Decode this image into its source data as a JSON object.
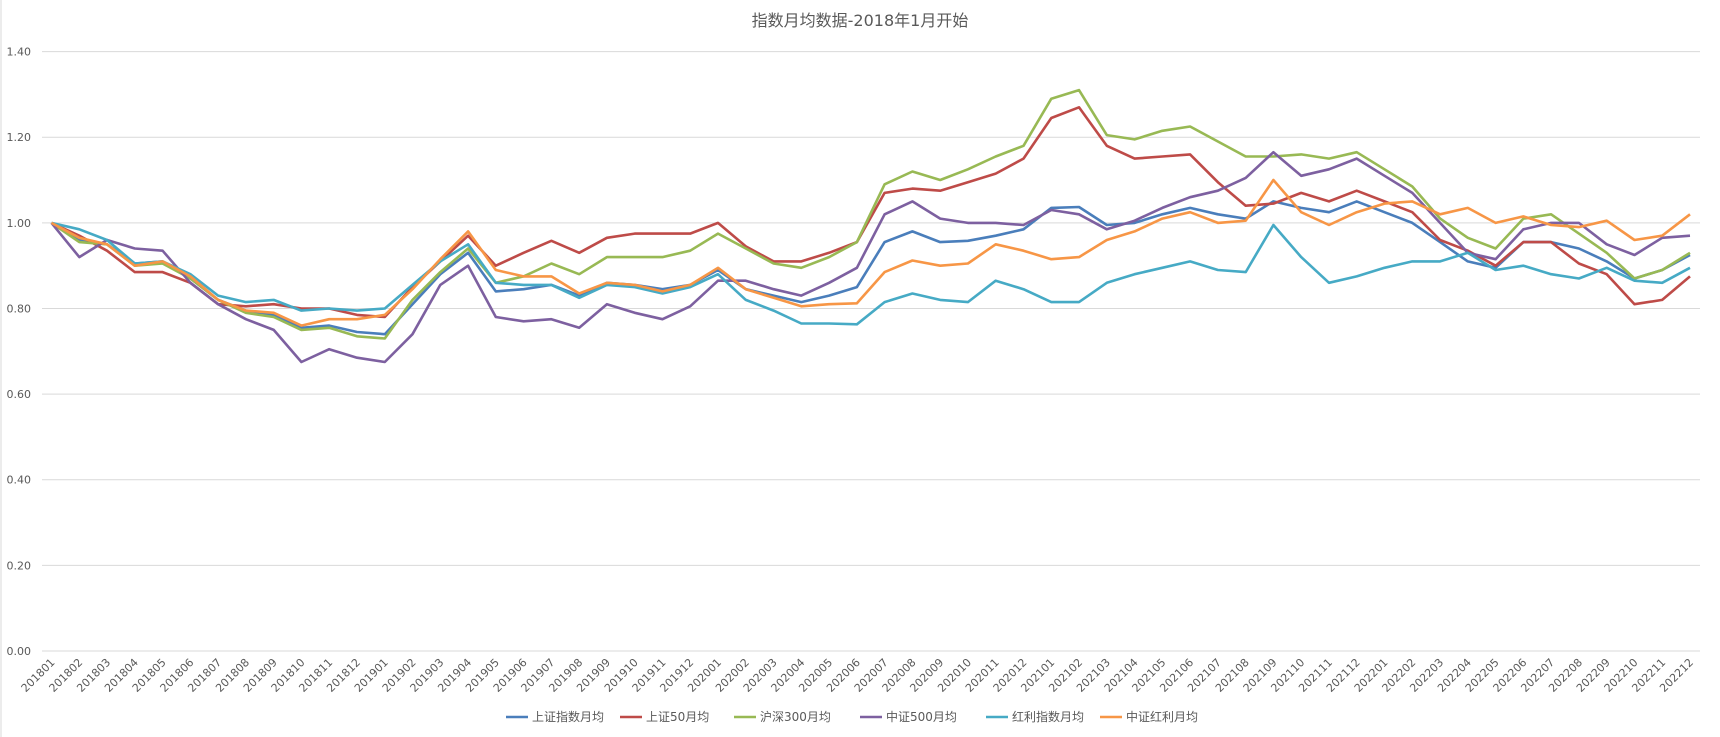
{
  "chart_data": {
    "type": "line",
    "title": "指数月均数据-2018年1月开始",
    "xlabel": "",
    "ylabel": "",
    "ylim": [
      0,
      1.4
    ],
    "yticks": [
      "0.00",
      "0.20",
      "0.40",
      "0.60",
      "0.80",
      "1.00",
      "1.20",
      "1.40"
    ],
    "grid": true,
    "legend_position": "bottom",
    "categories": [
      "201801",
      "201802",
      "201803",
      "201804",
      "201805",
      "201806",
      "201807",
      "201808",
      "201809",
      "201810",
      "201811",
      "201812",
      "201901",
      "201902",
      "201903",
      "201904",
      "201905",
      "201906",
      "201907",
      "201908",
      "201909",
      "201910",
      "201911",
      "201912",
      "202001",
      "202002",
      "202003",
      "202004",
      "202005",
      "202006",
      "202007",
      "202008",
      "202009",
      "202010",
      "202011",
      "202012",
      "202101",
      "202102",
      "202103",
      "202104",
      "202105",
      "202106",
      "202107",
      "202108",
      "202109",
      "202110",
      "202111",
      "202112",
      "202201",
      "202202",
      "202203",
      "202204",
      "202205",
      "202206",
      "202207",
      "202208",
      "202209",
      "202210",
      "202211",
      "202212"
    ],
    "series": [
      {
        "name": "上证指数月均",
        "color": "#4a7ebb",
        "values": [
          1.0,
          0.96,
          0.95,
          0.905,
          0.91,
          0.87,
          0.82,
          0.795,
          0.785,
          0.755,
          0.76,
          0.745,
          0.74,
          0.81,
          0.88,
          0.93,
          0.84,
          0.845,
          0.855,
          0.83,
          0.86,
          0.855,
          0.845,
          0.855,
          0.89,
          0.845,
          0.83,
          0.815,
          0.83,
          0.85,
          0.955,
          0.98,
          0.955,
          0.958,
          0.97,
          0.985,
          1.035,
          1.037,
          0.995,
          1.0,
          1.02,
          1.035,
          1.02,
          1.01,
          1.05,
          1.035,
          1.025,
          1.05,
          1.025,
          1.0,
          0.955,
          0.91,
          0.895,
          0.955,
          0.955,
          0.94,
          0.91,
          0.87,
          0.89,
          0.925
        ]
      },
      {
        "name": "上证50月均",
        "color": "#be4b48",
        "values": [
          1.0,
          0.97,
          0.935,
          0.885,
          0.885,
          0.86,
          0.81,
          0.805,
          0.81,
          0.8,
          0.8,
          0.785,
          0.78,
          0.85,
          0.91,
          0.97,
          0.9,
          0.93,
          0.958,
          0.93,
          0.965,
          0.975,
          0.975,
          0.975,
          1.0,
          0.945,
          0.91,
          0.91,
          0.93,
          0.955,
          1.07,
          1.08,
          1.075,
          1.095,
          1.115,
          1.15,
          1.245,
          1.27,
          1.18,
          1.15,
          1.155,
          1.16,
          1.095,
          1.04,
          1.045,
          1.07,
          1.05,
          1.075,
          1.05,
          1.025,
          0.96,
          0.935,
          0.9,
          0.955,
          0.955,
          0.905,
          0.88,
          0.81,
          0.82,
          0.875
        ]
      },
      {
        "name": "沪深300月均",
        "color": "#98b954",
        "values": [
          1.0,
          0.955,
          0.95,
          0.9,
          0.905,
          0.87,
          0.82,
          0.79,
          0.78,
          0.75,
          0.755,
          0.735,
          0.73,
          0.82,
          0.885,
          0.94,
          0.86,
          0.875,
          0.905,
          0.88,
          0.92,
          0.92,
          0.92,
          0.935,
          0.975,
          0.94,
          0.905,
          0.895,
          0.92,
          0.955,
          1.09,
          1.12,
          1.1,
          1.125,
          1.155,
          1.18,
          1.29,
          1.31,
          1.205,
          1.195,
          1.215,
          1.225,
          1.19,
          1.155,
          1.155,
          1.16,
          1.15,
          1.165,
          1.125,
          1.085,
          1.01,
          0.965,
          0.94,
          1.01,
          1.02,
          0.975,
          0.93,
          0.87,
          0.89,
          0.93
        ]
      },
      {
        "name": "中证500月均",
        "color": "#7d60a0",
        "values": [
          1.0,
          0.92,
          0.96,
          0.94,
          0.935,
          0.86,
          0.81,
          0.775,
          0.75,
          0.675,
          0.705,
          0.685,
          0.675,
          0.74,
          0.855,
          0.9,
          0.78,
          0.77,
          0.775,
          0.755,
          0.81,
          0.79,
          0.775,
          0.805,
          0.865,
          0.865,
          0.845,
          0.83,
          0.86,
          0.895,
          1.02,
          1.05,
          1.01,
          1.0,
          1.0,
          0.995,
          1.03,
          1.02,
          0.985,
          1.005,
          1.035,
          1.06,
          1.075,
          1.105,
          1.165,
          1.11,
          1.125,
          1.15,
          1.11,
          1.07,
          1.0,
          0.93,
          0.915,
          0.985,
          1.0,
          1.0,
          0.95,
          0.925,
          0.965,
          0.97
        ]
      },
      {
        "name": "红利指数月均",
        "color": "#46aac5",
        "values": [
          1.0,
          0.985,
          0.96,
          0.905,
          0.91,
          0.88,
          0.83,
          0.815,
          0.82,
          0.795,
          0.8,
          0.795,
          0.8,
          0.855,
          0.91,
          0.95,
          0.86,
          0.855,
          0.855,
          0.825,
          0.855,
          0.85,
          0.835,
          0.85,
          0.88,
          0.82,
          0.795,
          0.765,
          0.765,
          0.763,
          0.815,
          0.835,
          0.82,
          0.815,
          0.865,
          0.845,
          0.815,
          0.815,
          0.86,
          0.88,
          0.895,
          0.91,
          0.89,
          0.885,
          0.995,
          0.92,
          0.86,
          0.875,
          0.895,
          0.91,
          0.91,
          0.93,
          0.89,
          0.9,
          0.88,
          0.87,
          0.895,
          0.865,
          0.86,
          0.895
        ]
      },
      {
        "name": "中证红利月均",
        "color": "#f79646",
        "values": [
          1.0,
          0.965,
          0.95,
          0.9,
          0.91,
          0.875,
          0.82,
          0.795,
          0.79,
          0.76,
          0.775,
          0.775,
          0.785,
          0.845,
          0.915,
          0.98,
          0.89,
          0.875,
          0.875,
          0.835,
          0.86,
          0.855,
          0.84,
          0.855,
          0.895,
          0.845,
          0.825,
          0.805,
          0.81,
          0.812,
          0.885,
          0.912,
          0.9,
          0.905,
          0.95,
          0.935,
          0.915,
          0.92,
          0.96,
          0.98,
          1.01,
          1.025,
          1.0,
          1.005,
          1.1,
          1.025,
          0.995,
          1.025,
          1.045,
          1.05,
          1.02,
          1.035,
          1.0,
          1.015,
          0.995,
          0.99,
          1.005,
          0.96,
          0.97,
          1.02
        ]
      }
    ]
  }
}
